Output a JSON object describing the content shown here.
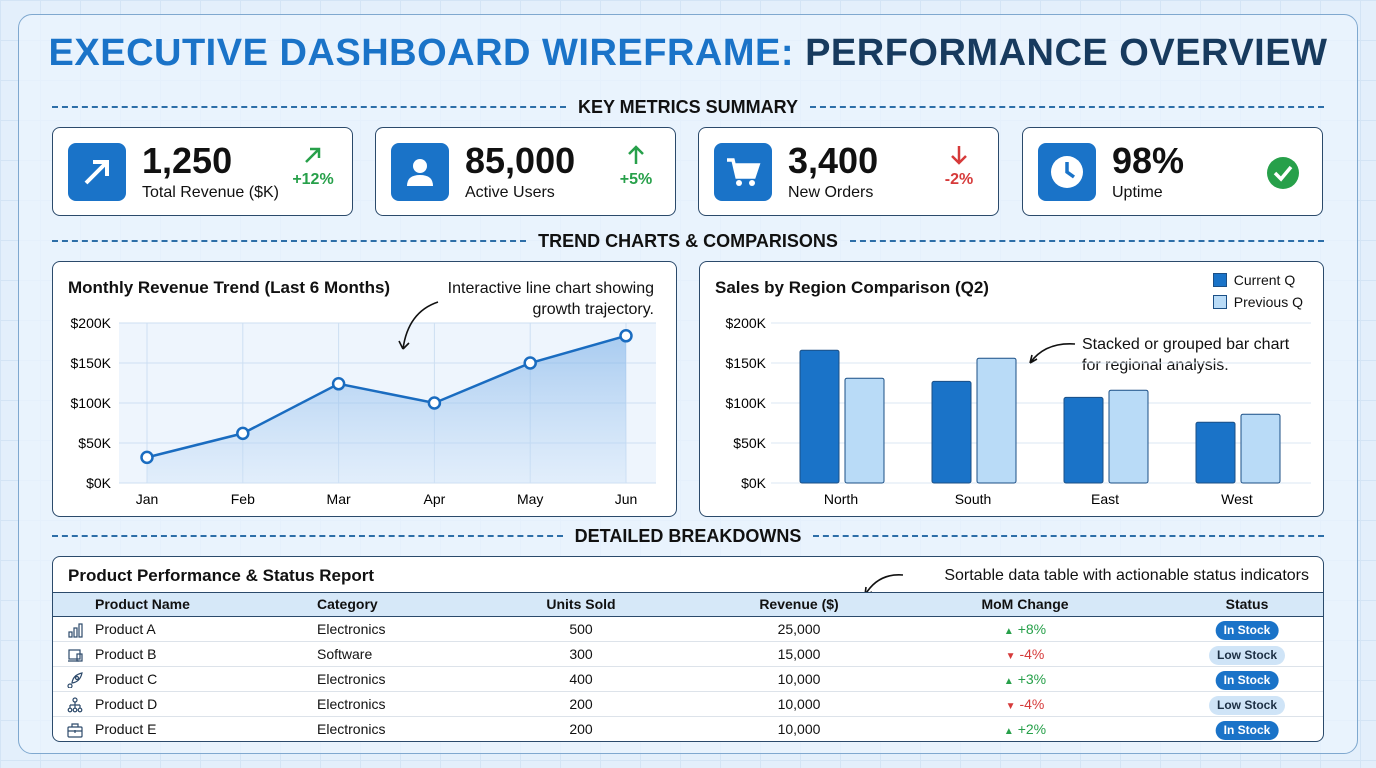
{
  "title": {
    "part1": "EXECUTIVE DASHBOARD WIREFRAME:",
    "part2": "PERFORMANCE OVERVIEW"
  },
  "sections": {
    "kpi": "KEY METRICS SUMMARY",
    "trends": "TREND CHARTS & COMPARISONS",
    "details": "DETAILED BREAKDOWNS"
  },
  "kpis": [
    {
      "value": "1,250",
      "label": "Total Revenue ($K)",
      "change": "+12%",
      "trend": "up",
      "icon": "trend-arrow-icon"
    },
    {
      "value": "85,000",
      "label": "Active Users",
      "change": "+5%",
      "trend": "up",
      "icon": "user-icon"
    },
    {
      "value": "3,400",
      "label": "New Orders",
      "change": "-2%",
      "trend": "down",
      "icon": "cart-icon"
    },
    {
      "value": "98%",
      "label": "Uptime",
      "change": "",
      "trend": "ok",
      "icon": "clock-icon"
    }
  ],
  "colors": {
    "accent": "#1a73c8",
    "light": "#b9dbf7",
    "up": "#27a04a",
    "down": "#d63a3a"
  },
  "chart_data": [
    {
      "type": "area",
      "title": "Monthly Revenue Trend (Last 6 Months)",
      "annotation": "Interactive line chart showing growth trajectory.",
      "categories": [
        "Jan",
        "Feb",
        "Mar",
        "Apr",
        "May",
        "Jun"
      ],
      "values": [
        32,
        62,
        124,
        100,
        150,
        184
      ],
      "yticks": [
        "$0K",
        "$50K",
        "$100K",
        "$150K",
        "$200K"
      ],
      "ylim": [
        0,
        200
      ],
      "grid": true
    },
    {
      "type": "bar",
      "title": "Sales by Region Comparison (Q2)",
      "annotation": "Stacked or grouped bar chart for regional analysis.",
      "categories": [
        "North",
        "South",
        "East",
        "West"
      ],
      "series": [
        {
          "name": "Current Q",
          "values": [
            166,
            127,
            107,
            76
          ]
        },
        {
          "name": "Previous Q",
          "values": [
            131,
            156,
            116,
            86
          ]
        }
      ],
      "yticks": [
        "$0K",
        "$50K",
        "$100K",
        "$150K",
        "$200K"
      ],
      "ylim": [
        0,
        200
      ],
      "grid": true,
      "legend": "top-right"
    }
  ],
  "table": {
    "title": "Product Performance & Status Report",
    "annotation": "Sortable data table with actionable status indicators",
    "columns": [
      "Product Name",
      "Category",
      "Units Sold",
      "Revenue ($)",
      "MoM Change",
      "Status"
    ],
    "rows": [
      {
        "icon": "bar-chart-icon",
        "name": "Product A",
        "category": "Electronics",
        "units": "500",
        "revenue": "25,000",
        "mom": "+8%",
        "trend": "up",
        "status": "In Stock"
      },
      {
        "icon": "laptop-icon",
        "name": "Product B",
        "category": "Software",
        "units": "300",
        "revenue": "15,000",
        "mom": "-4%",
        "trend": "down",
        "status": "Low Stock"
      },
      {
        "icon": "rocket-icon",
        "name": "Product C",
        "category": "Electronics",
        "units": "400",
        "revenue": "10,000",
        "mom": "+3%",
        "trend": "up",
        "status": "In Stock"
      },
      {
        "icon": "hierarchy-icon",
        "name": "Product D",
        "category": "Electronics",
        "units": "200",
        "revenue": "10,000",
        "mom": "-4%",
        "trend": "down",
        "status": "Low Stock"
      },
      {
        "icon": "briefcase-icon",
        "name": "Product E",
        "category": "Electronics",
        "units": "200",
        "revenue": "10,000",
        "mom": "+2%",
        "trend": "up",
        "status": "In Stock"
      }
    ]
  }
}
